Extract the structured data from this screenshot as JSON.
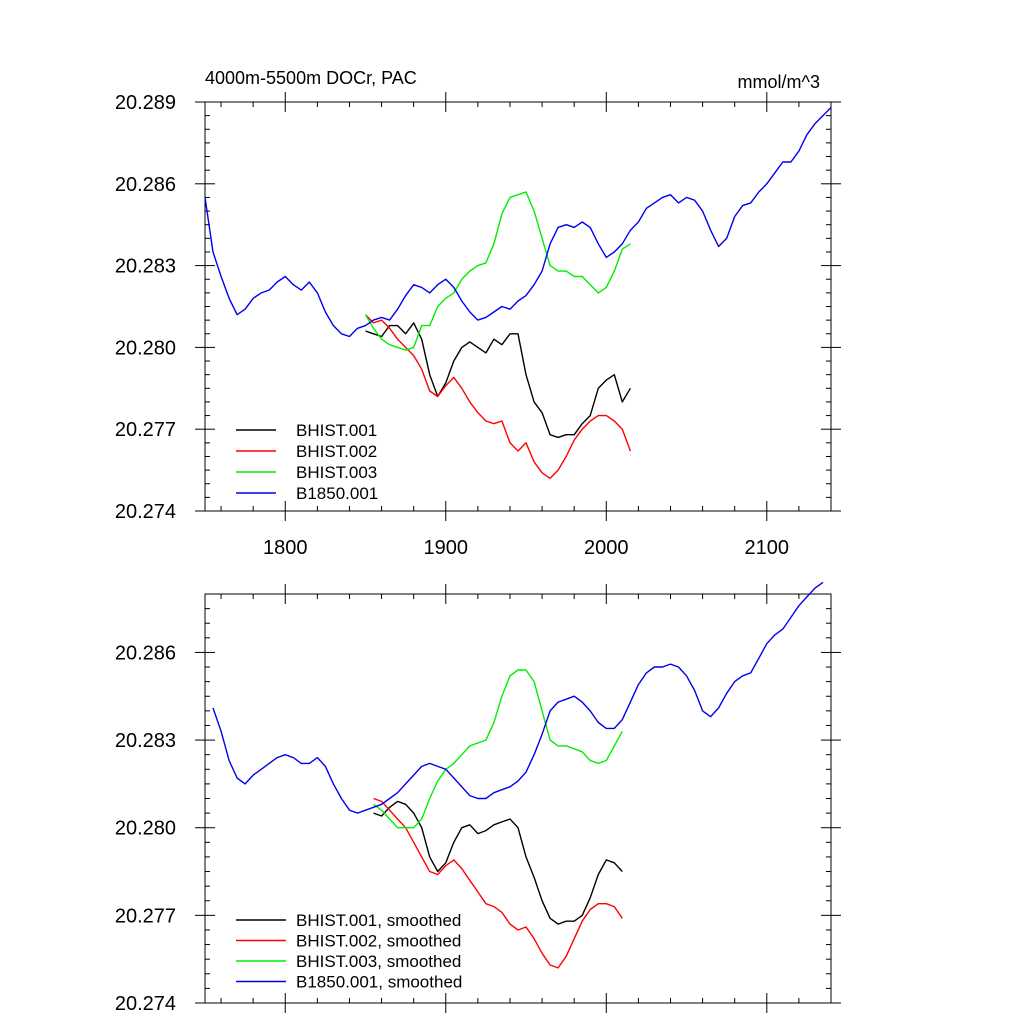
{
  "header": {
    "left": "4000m-5500m DOCr, PAC",
    "right": "mmol/m^3"
  },
  "colors": {
    "BHIST.001": "#000000",
    "BHIST.002": "#ff0000",
    "BHIST.003": "#00ee00",
    "B1850.001": "#0000ee"
  },
  "chart_data": [
    {
      "type": "line",
      "title": "4000m-5500m DOCr, PAC",
      "units": "mmol/m^3",
      "xlim": [
        1750,
        2140
      ],
      "ylim": [
        20.274,
        20.289
      ],
      "x_ticks": [
        1800,
        1900,
        2000,
        2100
      ],
      "x_tick_labels": [
        "1800",
        "1900",
        "2000",
        "2100"
      ],
      "y_ticks": [
        20.274,
        20.277,
        20.28,
        20.283,
        20.286,
        20.289
      ],
      "y_tick_labels": [
        "20.274",
        "20.277",
        "20.280",
        "20.283",
        "20.286",
        "20.289"
      ],
      "legend": [
        "BHIST.001",
        "BHIST.002",
        "BHIST.003",
        "B1850.001"
      ],
      "series": [
        {
          "name": "BHIST.001",
          "color": "#000000",
          "x": [
            1850,
            1855,
            1860,
            1865,
            1870,
            1875,
            1880,
            1885,
            1890,
            1895,
            1900,
            1905,
            1910,
            1915,
            1920,
            1925,
            1930,
            1935,
            1940,
            1945,
            1950,
            1955,
            1960,
            1965,
            1970,
            1975,
            1980,
            1985,
            1990,
            1995,
            2000,
            2005,
            2010,
            2015
          ],
          "y": [
            20.2806,
            20.2805,
            20.2804,
            20.2808,
            20.2808,
            20.2805,
            20.2809,
            20.2803,
            20.279,
            20.2782,
            20.2787,
            20.2795,
            20.28,
            20.2802,
            20.28,
            20.2798,
            20.2803,
            20.2801,
            20.2805,
            20.2805,
            20.279,
            20.278,
            20.2776,
            20.2768,
            20.2767,
            20.2768,
            20.2768,
            20.2772,
            20.2775,
            20.2785,
            20.2788,
            20.279,
            20.278,
            20.2785
          ]
        },
        {
          "name": "BHIST.002",
          "color": "#ff0000",
          "x": [
            1850,
            1855,
            1860,
            1865,
            1870,
            1875,
            1880,
            1885,
            1890,
            1895,
            1900,
            1905,
            1910,
            1915,
            1920,
            1925,
            1930,
            1935,
            1940,
            1945,
            1950,
            1955,
            1960,
            1965,
            1970,
            1975,
            1980,
            1985,
            1990,
            1995,
            2000,
            2005,
            2010,
            2015
          ],
          "y": [
            20.2812,
            20.2809,
            20.281,
            20.2807,
            20.2803,
            20.28,
            20.2797,
            20.2792,
            20.2784,
            20.2782,
            20.2786,
            20.2789,
            20.2785,
            20.278,
            20.2776,
            20.2773,
            20.2772,
            20.2773,
            20.2765,
            20.2762,
            20.2765,
            20.2758,
            20.2754,
            20.2752,
            20.2755,
            20.276,
            20.2766,
            20.277,
            20.2773,
            20.2775,
            20.2775,
            20.2773,
            20.277,
            20.2762
          ]
        },
        {
          "name": "BHIST.003",
          "color": "#00ee00",
          "x": [
            1850,
            1855,
            1860,
            1865,
            1870,
            1875,
            1880,
            1885,
            1890,
            1895,
            1900,
            1905,
            1910,
            1915,
            1920,
            1925,
            1930,
            1935,
            1940,
            1945,
            1950,
            1955,
            1960,
            1965,
            1970,
            1975,
            1980,
            1985,
            1990,
            1995,
            2000,
            2005,
            2010,
            2015
          ],
          "y": [
            20.2812,
            20.2807,
            20.2803,
            20.2801,
            20.28,
            20.2799,
            20.28,
            20.2808,
            20.2808,
            20.2815,
            20.2818,
            20.282,
            20.2825,
            20.2828,
            20.283,
            20.2831,
            20.2838,
            20.2849,
            20.2855,
            20.2856,
            20.2857,
            20.285,
            20.284,
            20.283,
            20.2828,
            20.2828,
            20.2826,
            20.2826,
            20.2823,
            20.282,
            20.2822,
            20.2828,
            20.2836,
            20.2838
          ]
        },
        {
          "name": "B1850.001",
          "color": "#0000ee",
          "x": [
            1750,
            1755,
            1760,
            1765,
            1770,
            1775,
            1780,
            1785,
            1790,
            1795,
            1800,
            1805,
            1810,
            1815,
            1820,
            1825,
            1830,
            1835,
            1840,
            1845,
            1850,
            1855,
            1860,
            1865,
            1870,
            1875,
            1880,
            1885,
            1890,
            1895,
            1900,
            1905,
            1910,
            1915,
            1920,
            1925,
            1930,
            1935,
            1940,
            1945,
            1950,
            1955,
            1960,
            1965,
            1970,
            1975,
            1980,
            1985,
            1990,
            1995,
            2000,
            2005,
            2010,
            2015,
            2020,
            2025,
            2030,
            2035,
            2040,
            2045,
            2050,
            2055,
            2060,
            2065,
            2070,
            2075,
            2080,
            2085,
            2090,
            2095,
            2100,
            2105,
            2110,
            2115,
            2120,
            2125,
            2130,
            2135,
            2140
          ],
          "y": [
            20.2855,
            20.2835,
            20.2826,
            20.2818,
            20.2812,
            20.2814,
            20.2818,
            20.282,
            20.2821,
            20.2824,
            20.2826,
            20.2823,
            20.2821,
            20.2824,
            20.282,
            20.2813,
            20.2808,
            20.2805,
            20.2804,
            20.2807,
            20.2808,
            20.281,
            20.2811,
            20.281,
            20.2814,
            20.2819,
            20.2823,
            20.2822,
            20.282,
            20.2823,
            20.2825,
            20.2822,
            20.2817,
            20.2813,
            20.281,
            20.2811,
            20.2813,
            20.2815,
            20.2814,
            20.2817,
            20.2819,
            20.2823,
            20.2828,
            20.2838,
            20.2844,
            20.2845,
            20.2844,
            20.2846,
            20.2844,
            20.2838,
            20.2833,
            20.2835,
            20.2838,
            20.2843,
            20.2846,
            20.2851,
            20.2853,
            20.2855,
            20.2856,
            20.2853,
            20.2855,
            20.2854,
            20.285,
            20.2843,
            20.2837,
            20.284,
            20.2848,
            20.2852,
            20.2853,
            20.2857,
            20.286,
            20.2864,
            20.2868,
            20.2868,
            20.2872,
            20.2878,
            20.2882,
            20.2885,
            20.2888
          ]
        }
      ]
    },
    {
      "type": "line",
      "xlim": [
        1750,
        2140
      ],
      "ylim": [
        20.274,
        20.288
      ],
      "x_ticks": [
        1800,
        1900,
        2000,
        2100
      ],
      "y_ticks": [
        20.274,
        20.277,
        20.28,
        20.283,
        20.286
      ],
      "y_tick_labels": [
        "20.274",
        "20.277",
        "20.280",
        "20.283",
        "20.286"
      ],
      "legend": [
        "BHIST.001, smoothed",
        "BHIST.002, smoothed",
        "BHIST.003, smoothed",
        "B1850.001, smoothed"
      ],
      "series": [
        {
          "name": "BHIST.001, smoothed",
          "color": "#000000",
          "x": [
            1855,
            1860,
            1865,
            1870,
            1875,
            1880,
            1885,
            1890,
            1895,
            1900,
            1905,
            1910,
            1915,
            1920,
            1925,
            1930,
            1935,
            1940,
            1945,
            1950,
            1955,
            1960,
            1965,
            1970,
            1975,
            1980,
            1985,
            1990,
            1995,
            2000,
            2005,
            2010
          ],
          "y": [
            20.2805,
            20.2804,
            20.2807,
            20.2809,
            20.2808,
            20.2805,
            20.28,
            20.279,
            20.2785,
            20.2788,
            20.2795,
            20.28,
            20.2801,
            20.2798,
            20.2799,
            20.2801,
            20.2802,
            20.2803,
            20.28,
            20.279,
            20.2783,
            20.2775,
            20.2769,
            20.2767,
            20.2768,
            20.2768,
            20.277,
            20.2776,
            20.2784,
            20.2789,
            20.2788,
            20.2785
          ]
        },
        {
          "name": "BHIST.002, smoothed",
          "color": "#ff0000",
          "x": [
            1855,
            1860,
            1865,
            1870,
            1875,
            1880,
            1885,
            1890,
            1895,
            1900,
            1905,
            1910,
            1915,
            1920,
            1925,
            1930,
            1935,
            1940,
            1945,
            1950,
            1955,
            1960,
            1965,
            1970,
            1975,
            1980,
            1985,
            1990,
            1995,
            2000,
            2005,
            2010
          ],
          "y": [
            20.281,
            20.2809,
            20.2806,
            20.2803,
            20.28,
            20.2795,
            20.279,
            20.2785,
            20.2784,
            20.2787,
            20.2789,
            20.2786,
            20.2782,
            20.2778,
            20.2774,
            20.2773,
            20.2771,
            20.2767,
            20.2765,
            20.2766,
            20.2762,
            20.2757,
            20.2753,
            20.2752,
            20.2756,
            20.2762,
            20.2768,
            20.2772,
            20.2774,
            20.2774,
            20.2773,
            20.2769
          ]
        },
        {
          "name": "BHIST.003, smoothed",
          "color": "#00ee00",
          "x": [
            1855,
            1860,
            1865,
            1870,
            1875,
            1880,
            1885,
            1890,
            1895,
            1900,
            1905,
            1910,
            1915,
            1920,
            1925,
            1930,
            1935,
            1940,
            1945,
            1950,
            1955,
            1960,
            1965,
            1970,
            1975,
            1980,
            1985,
            1990,
            1995,
            2000,
            2005,
            2010
          ],
          "y": [
            20.2808,
            20.2806,
            20.2803,
            20.28,
            20.28,
            20.28,
            20.2803,
            20.281,
            20.2816,
            20.282,
            20.2822,
            20.2825,
            20.2828,
            20.2829,
            20.283,
            20.2836,
            20.2845,
            20.2852,
            20.2854,
            20.2854,
            20.285,
            20.284,
            20.283,
            20.2828,
            20.2828,
            20.2827,
            20.2826,
            20.2823,
            20.2822,
            20.2823,
            20.2828,
            20.2833
          ]
        },
        {
          "name": "B1850.001, smoothed",
          "color": "#0000ee",
          "x": [
            1755,
            1760,
            1765,
            1770,
            1775,
            1780,
            1785,
            1790,
            1795,
            1800,
            1805,
            1810,
            1815,
            1820,
            1825,
            1830,
            1835,
            1840,
            1845,
            1850,
            1855,
            1860,
            1865,
            1870,
            1875,
            1880,
            1885,
            1890,
            1895,
            1900,
            1905,
            1910,
            1915,
            1920,
            1925,
            1930,
            1935,
            1940,
            1945,
            1950,
            1955,
            1960,
            1965,
            1970,
            1975,
            1980,
            1985,
            1990,
            1995,
            2000,
            2005,
            2010,
            2015,
            2020,
            2025,
            2030,
            2035,
            2040,
            2045,
            2050,
            2055,
            2060,
            2065,
            2070,
            2075,
            2080,
            2085,
            2090,
            2095,
            2100,
            2105,
            2110,
            2115,
            2120,
            2125,
            2130,
            2135
          ],
          "y": [
            20.2841,
            20.2833,
            20.2823,
            20.2817,
            20.2815,
            20.2818,
            20.282,
            20.2822,
            20.2824,
            20.2825,
            20.2824,
            20.2822,
            20.2822,
            20.2824,
            20.2821,
            20.2815,
            20.281,
            20.2806,
            20.2805,
            20.2806,
            20.2807,
            20.2808,
            20.281,
            20.2812,
            20.2815,
            20.2818,
            20.2821,
            20.2822,
            20.2821,
            20.282,
            20.2817,
            20.2814,
            20.2811,
            20.281,
            20.281,
            20.2812,
            20.2813,
            20.2814,
            20.2816,
            20.2819,
            20.2825,
            20.2832,
            20.284,
            20.2843,
            20.2844,
            20.2845,
            20.2843,
            20.284,
            20.2836,
            20.2834,
            20.2834,
            20.2837,
            20.2843,
            20.2849,
            20.2853,
            20.2855,
            20.2855,
            20.2856,
            20.2855,
            20.2852,
            20.2847,
            20.284,
            20.2838,
            20.2841,
            20.2846,
            20.285,
            20.2852,
            20.2853,
            20.2858,
            20.2863,
            20.2866,
            20.2868,
            20.2872,
            20.2876,
            20.2879,
            20.2882,
            20.2884
          ]
        }
      ]
    }
  ]
}
